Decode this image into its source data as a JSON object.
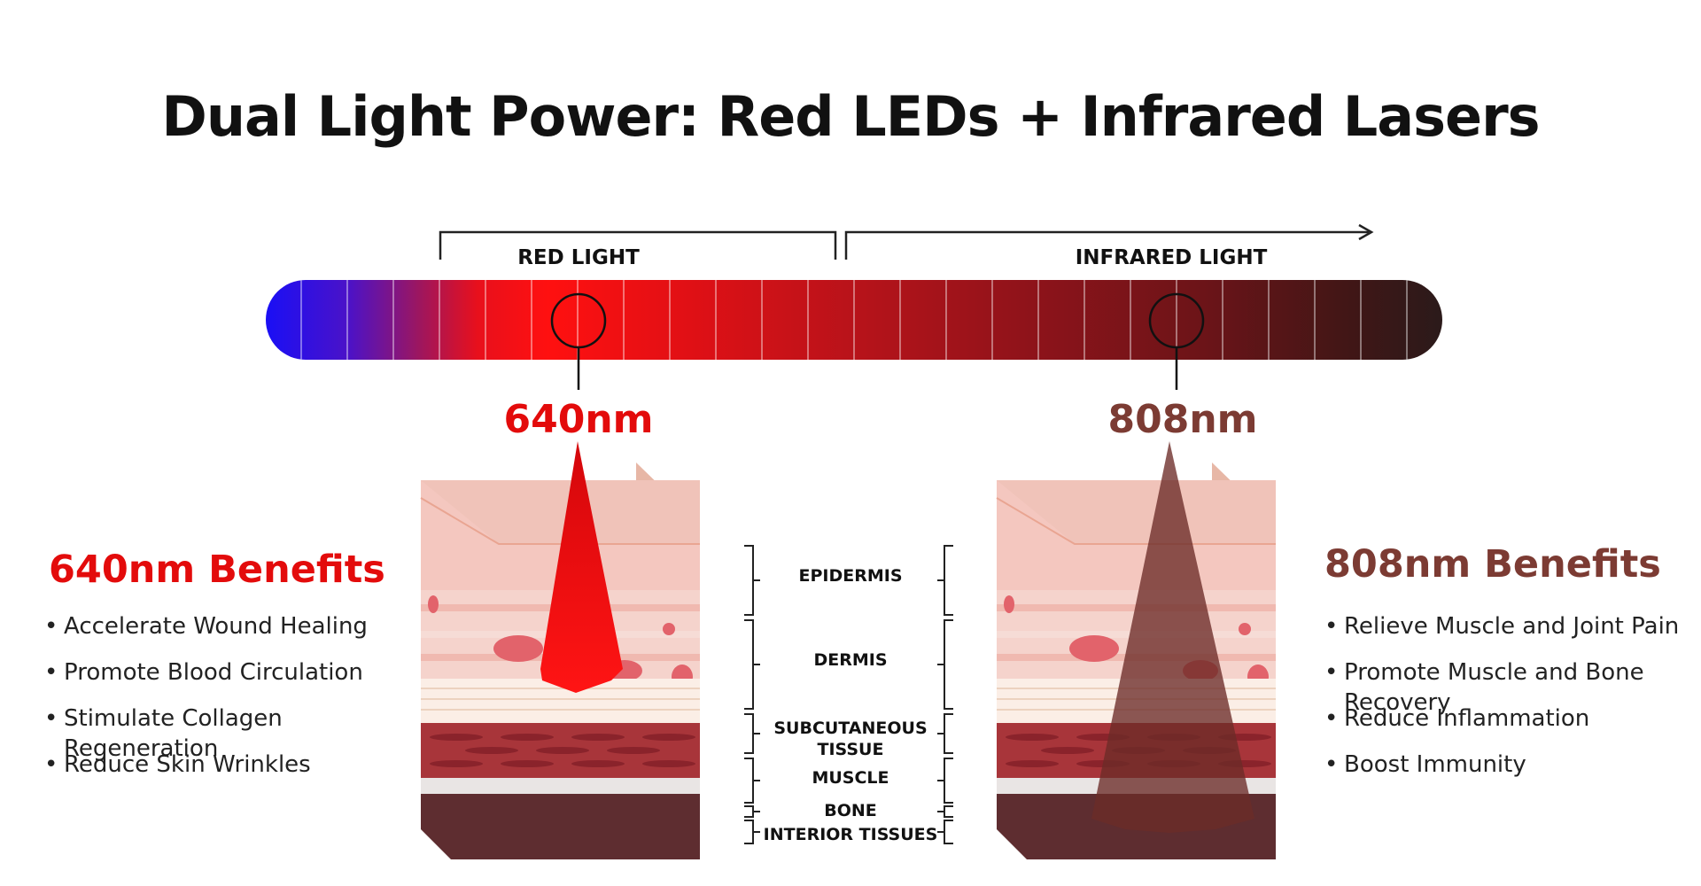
{
  "title": "Dual Light Power: Red LEDs + Infrared Lasers",
  "spectrum": {
    "red_range_label": "RED LIGHT",
    "infrared_range_label": "INFRARED LIGHT"
  },
  "wavelengths": {
    "red": {
      "label": "640nm",
      "color": "#e30b0b"
    },
    "infrared": {
      "label": "808nm",
      "color": "#7c3b33"
    }
  },
  "benefits_red": {
    "heading": "640nm Benefits",
    "color": "#e30b0b",
    "items": [
      "Accelerate Wound Healing",
      "Promote Blood Circulation",
      "Stimulate Collagen Regeneration",
      "Reduce Skin Wrinkles"
    ]
  },
  "benefits_infrared": {
    "heading": "808nm Benefits",
    "color": "#7c3b33",
    "items": [
      "Relieve Muscle and Joint Pain",
      "Promote Muscle and Bone Recovery",
      "Reduce Inflammation",
      "Boost Immunity"
    ]
  },
  "skin_layers": {
    "epidermis": "EPIDERMIS",
    "dermis": "DERMIS",
    "subcutaneous_1": "SUBCUTANEOUS",
    "subcutaneous_2": "TISSUE",
    "muscle": "MUSCLE",
    "bone": "BONE",
    "interior": "INTERIOR TISSUES"
  }
}
